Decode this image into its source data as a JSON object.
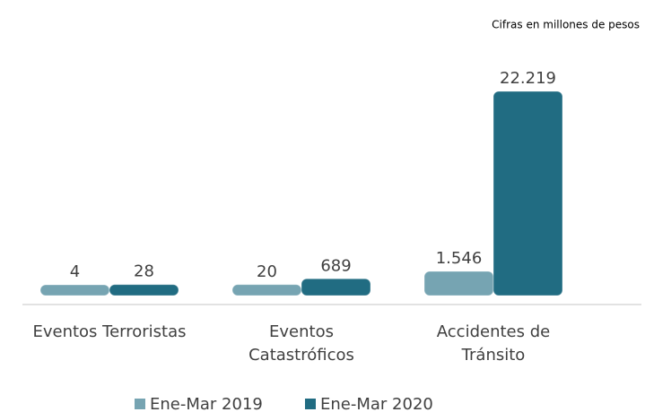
{
  "chart_data": {
    "type": "bar",
    "subtitle": "Cifras en millones de pesos",
    "categories": [
      "Eventos Terroristas",
      "Eventos\nCatastróficos",
      "Accidentes de\nTránsito"
    ],
    "series": [
      {
        "name": "Ene-Mar 2019",
        "color": "#76a4b2",
        "values": [
          4,
          20,
          1546
        ],
        "value_labels": [
          "4",
          "20",
          "1.546"
        ]
      },
      {
        "name": "Ene-Mar 2020",
        "color": "#216c82",
        "values": [
          28,
          689,
          22219
        ],
        "value_labels": [
          "28",
          "689",
          "22.219"
        ]
      }
    ]
  }
}
